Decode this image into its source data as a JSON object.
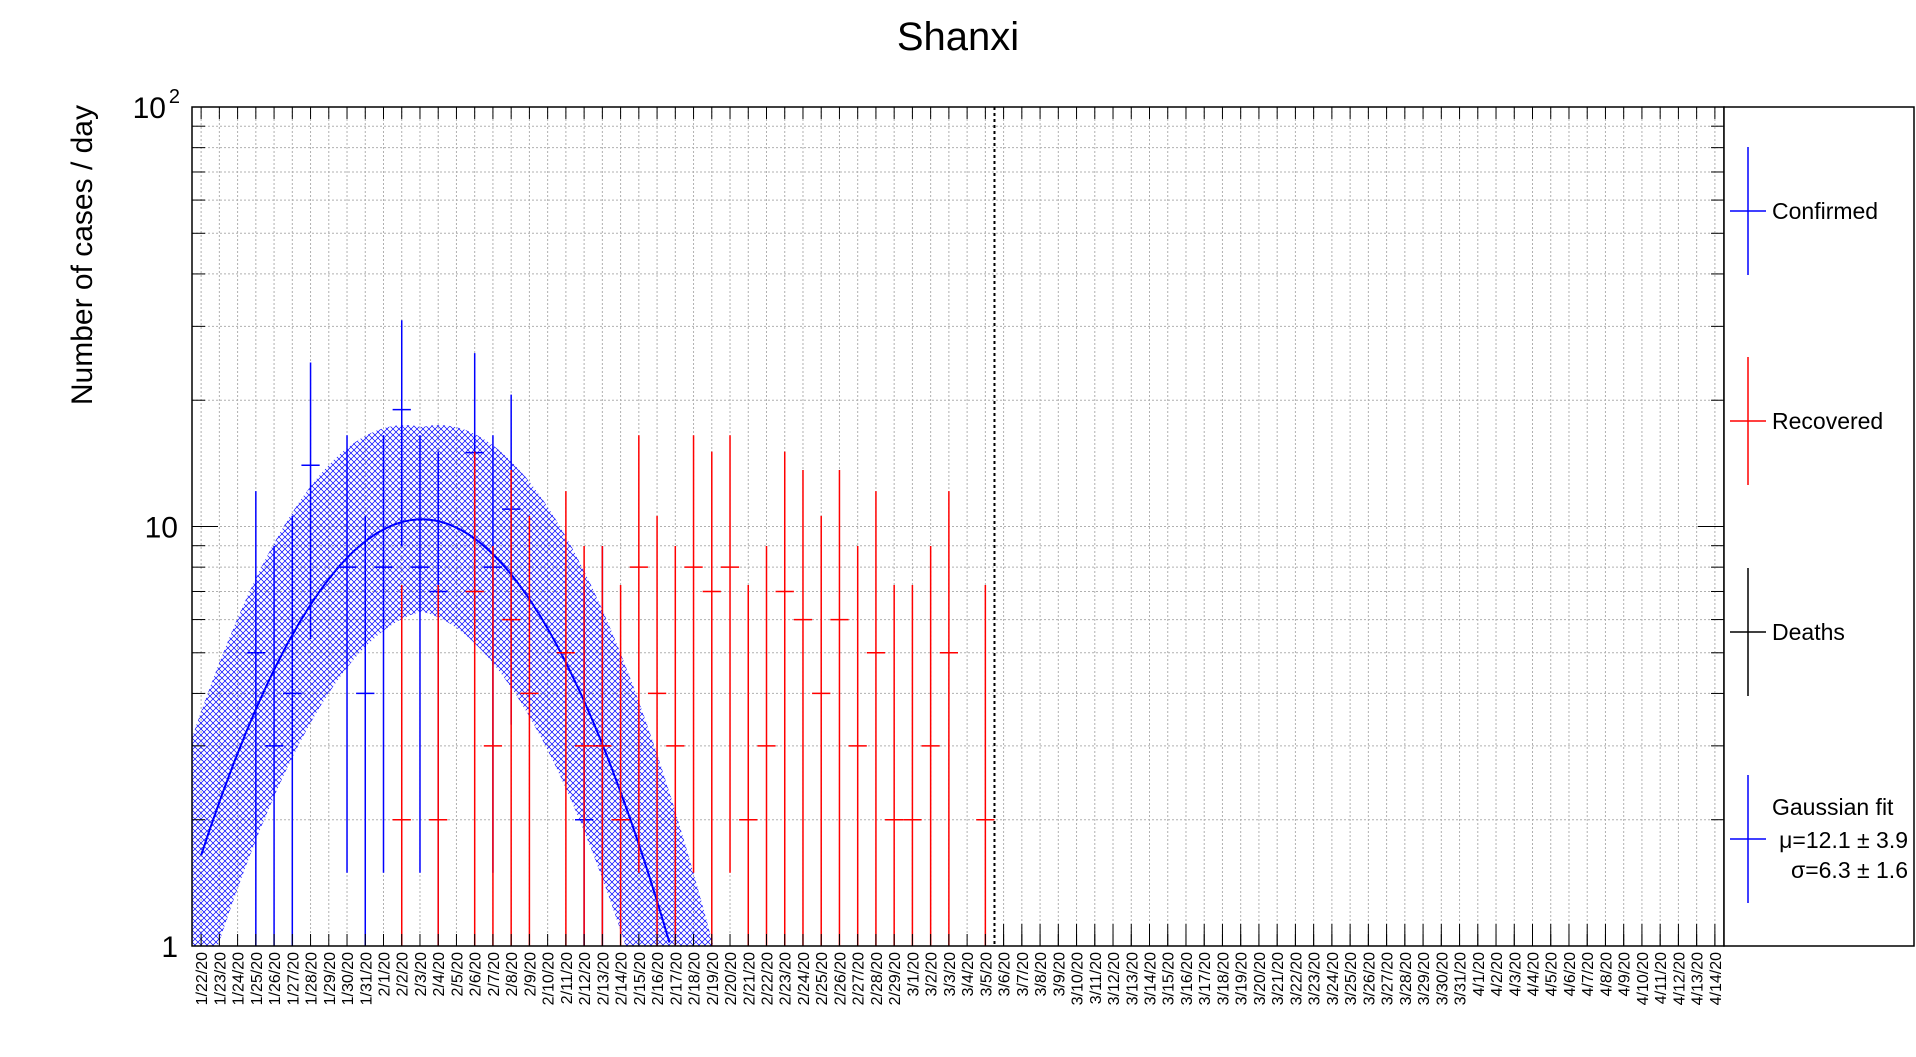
{
  "chart_data": {
    "type": "scatter",
    "title": "Shanxi",
    "ylabel": "Number of cases / day",
    "xlabel": "",
    "yscale": "log",
    "ylim": [
      1,
      100
    ],
    "y_ticks": [
      {
        "value": 1,
        "label": "1"
      },
      {
        "value": 10,
        "label": "10"
      },
      {
        "value": 100,
        "label": "10",
        "exponent": "2"
      }
    ],
    "x_labels": [
      "1/22/20",
      "1/23/20",
      "1/24/20",
      "1/25/20",
      "1/26/20",
      "1/27/20",
      "1/28/20",
      "1/29/20",
      "1/30/20",
      "1/31/20",
      "2/1/20",
      "2/2/20",
      "2/3/20",
      "2/4/20",
      "2/5/20",
      "2/6/20",
      "2/7/20",
      "2/8/20",
      "2/9/20",
      "2/10/20",
      "2/11/20",
      "2/12/20",
      "2/13/20",
      "2/14/20",
      "2/15/20",
      "2/16/20",
      "2/17/20",
      "2/18/20",
      "2/19/20",
      "2/20/20",
      "2/21/20",
      "2/22/20",
      "2/23/20",
      "2/24/20",
      "2/25/20",
      "2/26/20",
      "2/27/20",
      "2/28/20",
      "2/29/20",
      "3/1/20",
      "3/2/20",
      "3/3/20",
      "3/4/20",
      "3/5/20",
      "3/6/20",
      "3/7/20",
      "3/8/20",
      "3/9/20",
      "3/10/20",
      "3/11/20",
      "3/12/20",
      "3/13/20",
      "3/14/20",
      "3/15/20",
      "3/16/20",
      "3/17/20",
      "3/18/20",
      "3/19/20",
      "3/20/20",
      "3/21/20",
      "3/22/20",
      "3/23/20",
      "3/24/20",
      "3/25/20",
      "3/26/20",
      "3/27/20",
      "3/28/20",
      "3/29/20",
      "3/30/20",
      "3/31/20",
      "4/1/20",
      "4/2/20",
      "4/3/20",
      "4/4/20",
      "4/5/20",
      "4/6/20",
      "4/7/20",
      "4/8/20",
      "4/9/20",
      "4/10/20",
      "4/11/20",
      "4/12/20",
      "4/13/20",
      "4/14/20"
    ],
    "vertical_marker_index": 43.5,
    "series": [
      {
        "name": "Confirmed",
        "color": "#0000ff",
        "points": [
          {
            "x": 3,
            "y": 5
          },
          {
            "x": 4,
            "y": 3
          },
          {
            "x": 5,
            "y": 4
          },
          {
            "x": 6,
            "y": 14
          },
          {
            "x": 8,
            "y": 8
          },
          {
            "x": 9,
            "y": 4
          },
          {
            "x": 10,
            "y": 8
          },
          {
            "x": 11,
            "y": 19
          },
          {
            "x": 12,
            "y": 8
          },
          {
            "x": 13,
            "y": 7
          },
          {
            "x": 15,
            "y": 15
          },
          {
            "x": 16,
            "y": 8
          },
          {
            "x": 17,
            "y": 11
          },
          {
            "x": 21,
            "y": 2
          },
          {
            "x": 22,
            "y": 3
          }
        ]
      },
      {
        "name": "Recovered",
        "color": "#ff0000",
        "points": [
          {
            "x": 11,
            "y": 2
          },
          {
            "x": 13,
            "y": 2
          },
          {
            "x": 15,
            "y": 7
          },
          {
            "x": 16,
            "y": 3
          },
          {
            "x": 17,
            "y": 6
          },
          {
            "x": 18,
            "y": 4
          },
          {
            "x": 20,
            "y": 5
          },
          {
            "x": 21,
            "y": 3
          },
          {
            "x": 22,
            "y": 3
          },
          {
            "x": 23,
            "y": 2
          },
          {
            "x": 24,
            "y": 8
          },
          {
            "x": 25,
            "y": 4
          },
          {
            "x": 26,
            "y": 3
          },
          {
            "x": 27,
            "y": 8
          },
          {
            "x": 28,
            "y": 7
          },
          {
            "x": 29,
            "y": 8
          },
          {
            "x": 30,
            "y": 2
          },
          {
            "x": 31,
            "y": 3
          },
          {
            "x": 32,
            "y": 7
          },
          {
            "x": 33,
            "y": 6
          },
          {
            "x": 34,
            "y": 4
          },
          {
            "x": 35,
            "y": 6
          },
          {
            "x": 36,
            "y": 3
          },
          {
            "x": 37,
            "y": 5
          },
          {
            "x": 38,
            "y": 2
          },
          {
            "x": 39,
            "y": 2
          },
          {
            "x": 40,
            "y": 3
          },
          {
            "x": 41,
            "y": 5
          },
          {
            "x": 43,
            "y": 2
          }
        ]
      },
      {
        "name": "Deaths",
        "color": "#000000",
        "points": []
      }
    ],
    "fit": {
      "name": "Gaussian fit",
      "color": "#0000ff",
      "band_color": "#0000ff",
      "amplitude": 10.4,
      "mu": 12.1,
      "sigma": 6.3,
      "band_log_width": [
        0.22,
        0.38
      ],
      "label_mu": "μ=12.1 ± 3.9",
      "label_sigma": "σ=6.3 ± 1.6"
    },
    "grid": true,
    "legend": "right"
  }
}
